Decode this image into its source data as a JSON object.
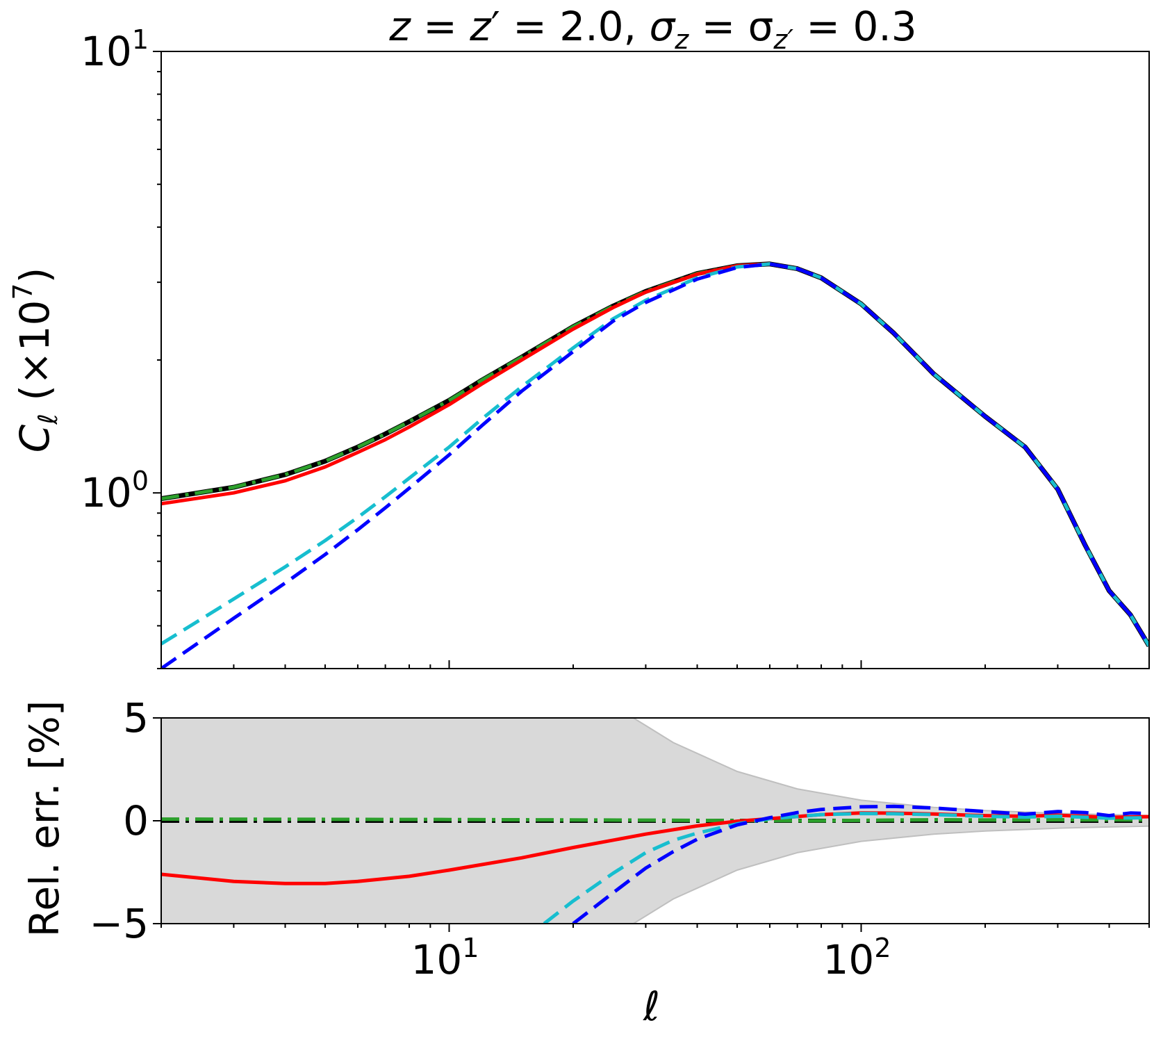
{
  "title": {
    "z_part": "z = z",
    "z_prime_value": "′ = 2.0,",
    "sigma_part": "σ",
    "sigma_z_sub": "z",
    "sigma_eq": " = σ",
    "sigma_zprime_sub": "z′",
    "sigma_value": " = 0.3"
  },
  "colors": {
    "red": "#ff0000",
    "cyan": "#17becf",
    "blue": "#0000ff",
    "black": "#000000",
    "green": "#2ca02c",
    "band": "#d9d9d9"
  },
  "chart_data": [
    {
      "type": "line",
      "panel": "top",
      "ylabel": "C_ℓ (×10^7)",
      "ylabel_parts": {
        "c": "C",
        "sub": "ℓ",
        "open": " (×10",
        "exp": "7",
        "close": ")"
      },
      "xscale": "log",
      "yscale": "log",
      "xlim": [
        2,
        500
      ],
      "ylim": [
        0.4,
        10
      ],
      "ytick_labels": [
        {
          "value": 1,
          "base": "10",
          "exp": "0"
        },
        {
          "value": 10,
          "base": "10",
          "exp": "1"
        }
      ],
      "grid": false,
      "series": [
        {
          "color": "black",
          "style": "solid",
          "x": [
            2,
            3,
            4,
            5,
            6,
            7,
            8,
            10,
            12,
            15,
            20,
            25,
            30,
            40,
            50,
            60,
            70,
            80,
            100,
            120,
            150,
            200,
            250,
            300,
            350,
            400,
            450,
            500
          ],
          "y": [
            0.97,
            1.03,
            1.1,
            1.18,
            1.27,
            1.36,
            1.45,
            1.62,
            1.8,
            2.03,
            2.38,
            2.65,
            2.86,
            3.14,
            3.27,
            3.3,
            3.22,
            3.07,
            2.68,
            2.3,
            1.86,
            1.49,
            1.27,
            1.02,
            0.76,
            0.6,
            0.53,
            0.45
          ]
        },
        {
          "color": "green",
          "style": "dashdot",
          "x": [
            2,
            3,
            4,
            5,
            6,
            7,
            8,
            10,
            12,
            15,
            20,
            25,
            30,
            40,
            50,
            60,
            70,
            80,
            100,
            120,
            150,
            200,
            250,
            300,
            350,
            400,
            450,
            500
          ],
          "y": [
            0.97,
            1.03,
            1.1,
            1.18,
            1.27,
            1.36,
            1.45,
            1.62,
            1.8,
            2.03,
            2.38,
            2.65,
            2.86,
            3.14,
            3.27,
            3.3,
            3.22,
            3.07,
            2.68,
            2.3,
            1.86,
            1.49,
            1.27,
            1.02,
            0.76,
            0.6,
            0.53,
            0.45
          ]
        },
        {
          "color": "red",
          "style": "solid",
          "x": [
            2,
            3,
            4,
            5,
            6,
            7,
            8,
            10,
            12,
            15,
            20,
            25,
            30,
            40,
            50,
            60,
            70,
            80,
            100,
            120,
            150,
            200,
            250,
            300,
            350,
            400,
            450,
            500
          ],
          "y": [
            0.945,
            1.0,
            1.065,
            1.145,
            1.235,
            1.32,
            1.41,
            1.585,
            1.765,
            2.0,
            2.35,
            2.63,
            2.85,
            3.13,
            3.27,
            3.3,
            3.22,
            3.07,
            2.68,
            2.3,
            1.86,
            1.49,
            1.27,
            1.02,
            0.76,
            0.6,
            0.53,
            0.45
          ]
        },
        {
          "color": "cyan",
          "style": "dashed",
          "x": [
            2,
            3,
            4,
            5,
            6,
            7,
            8,
            10,
            12,
            15,
            20,
            25,
            30,
            40,
            50,
            60,
            70,
            80,
            100,
            120,
            150,
            200,
            250,
            300,
            350,
            400,
            450,
            500
          ],
          "y": [
            0.455,
            0.575,
            0.68,
            0.78,
            0.88,
            0.98,
            1.08,
            1.27,
            1.47,
            1.74,
            2.13,
            2.48,
            2.73,
            3.07,
            3.25,
            3.3,
            3.22,
            3.07,
            2.68,
            2.3,
            1.86,
            1.49,
            1.27,
            1.02,
            0.76,
            0.6,
            0.53,
            0.45
          ]
        },
        {
          "color": "blue",
          "style": "dashed",
          "x": [
            2,
            3,
            4,
            5,
            6,
            7,
            8,
            10,
            12,
            15,
            20,
            25,
            30,
            40,
            50,
            60,
            70,
            80,
            100,
            120,
            150,
            200,
            250,
            300,
            350,
            400,
            450,
            500
          ],
          "y": [
            0.4,
            0.52,
            0.625,
            0.725,
            0.825,
            0.925,
            1.025,
            1.22,
            1.42,
            1.7,
            2.09,
            2.45,
            2.7,
            3.05,
            3.24,
            3.3,
            3.22,
            3.07,
            2.68,
            2.3,
            1.86,
            1.49,
            1.27,
            1.02,
            0.76,
            0.6,
            0.53,
            0.45
          ]
        }
      ]
    },
    {
      "type": "line",
      "panel": "bottom",
      "ylabel": "Rel. err. [%]",
      "xlabel": "ℓ",
      "xscale": "log",
      "xlim": [
        2,
        500
      ],
      "ylim": [
        -5,
        5
      ],
      "ytick_labels": [
        {
          "value": 5,
          "text": "5"
        },
        {
          "value": 0,
          "text": "0"
        },
        {
          "value": -5,
          "text": "−5"
        }
      ],
      "xtick_labels": [
        {
          "value": 10,
          "base": "10",
          "exp": "1"
        },
        {
          "value": 100,
          "base": "10",
          "exp": "2"
        }
      ],
      "grid": false,
      "band": {
        "x": [
          2,
          20,
          28,
          35,
          50,
          70,
          100,
          150,
          200,
          300,
          400,
          500
        ],
        "upper": [
          5,
          5,
          5,
          3.8,
          2.4,
          1.55,
          1.0,
          0.65,
          0.5,
          0.36,
          0.3,
          0.26
        ],
        "lower": [
          -5,
          -5,
          -5,
          -3.8,
          -2.4,
          -1.55,
          -1.0,
          -0.65,
          -0.5,
          -0.36,
          -0.3,
          -0.26
        ]
      },
      "series": [
        {
          "color": "black",
          "style": "dashdot",
          "x": [
            2,
            500
          ],
          "y": [
            0,
            0
          ]
        },
        {
          "color": "green",
          "style": "dashdot",
          "x": [
            2,
            10,
            30,
            50,
            80,
            100,
            150,
            200,
            300,
            500
          ],
          "y": [
            0.08,
            0.06,
            0.03,
            0.01,
            0.0,
            0.02,
            0.05,
            0.04,
            0.05,
            0.04
          ]
        },
        {
          "color": "red",
          "style": "solid",
          "x": [
            2,
            3,
            4,
            5,
            6,
            8,
            10,
            15,
            20,
            30,
            40,
            50,
            60,
            80,
            100,
            120,
            150,
            200,
            250,
            300,
            400,
            500
          ],
          "y": [
            -2.6,
            -2.95,
            -3.05,
            -3.05,
            -2.95,
            -2.7,
            -2.4,
            -1.8,
            -1.3,
            -0.65,
            -0.25,
            -0.02,
            0.1,
            0.3,
            0.38,
            0.37,
            0.33,
            0.25,
            0.22,
            0.27,
            0.17,
            0.2
          ]
        },
        {
          "color": "cyan",
          "style": "dashed",
          "x": [
            17,
            20,
            25,
            30,
            35,
            40,
            50,
            60,
            80,
            100,
            120,
            150,
            200,
            250,
            300,
            400,
            500
          ],
          "y": [
            -5,
            -3.9,
            -2.55,
            -1.55,
            -0.95,
            -0.6,
            -0.15,
            0.1,
            0.3,
            0.35,
            0.34,
            0.3,
            0.22,
            0.18,
            0.22,
            0.13,
            0.15
          ]
        },
        {
          "color": "blue",
          "style": "dashed",
          "x": [
            20,
            25,
            30,
            35,
            40,
            50,
            60,
            70,
            80,
            100,
            120,
            150,
            200,
            250,
            300,
            350,
            400,
            450,
            500
          ],
          "y": [
            -5,
            -3.5,
            -2.3,
            -1.5,
            -0.9,
            -0.2,
            0.15,
            0.4,
            0.55,
            0.68,
            0.7,
            0.62,
            0.45,
            0.32,
            0.45,
            0.4,
            0.25,
            0.38,
            0.35
          ]
        }
      ]
    }
  ]
}
